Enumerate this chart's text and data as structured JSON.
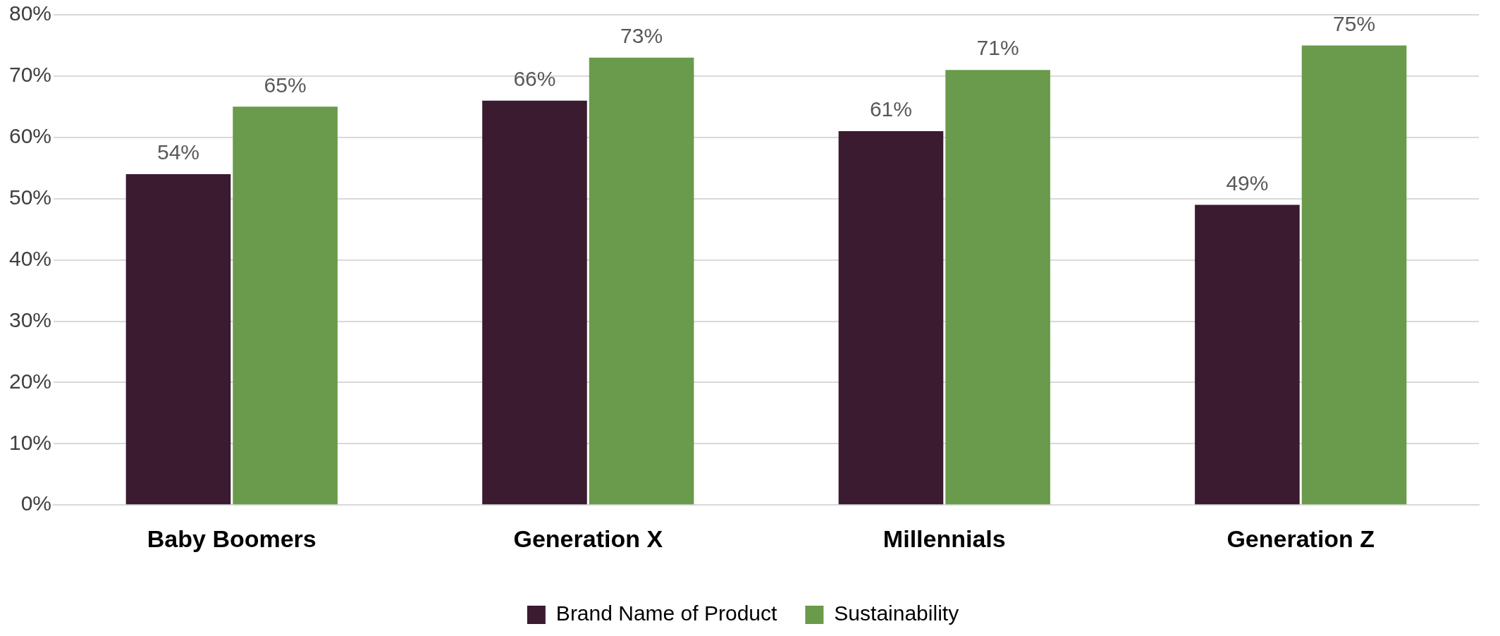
{
  "chart_data": {
    "type": "bar",
    "categories": [
      "Baby Boomers",
      "Generation X",
      "Millennials",
      "Generation Z"
    ],
    "series": [
      {
        "name": "Brand Name of Product",
        "color": "#3a1b30",
        "values": [
          54,
          66,
          61,
          49
        ],
        "value_labels": [
          "54%",
          "66%",
          "61%",
          "49%"
        ]
      },
      {
        "name": "Sustainability",
        "color": "#6a9a4b",
        "values": [
          65,
          73,
          71,
          75
        ],
        "value_labels": [
          "65%",
          "73%",
          "71%",
          "75%"
        ]
      }
    ],
    "ylim": [
      0,
      80
    ],
    "yticks": [
      {
        "value": 0,
        "label": "0%"
      },
      {
        "value": 10,
        "label": "10%"
      },
      {
        "value": 20,
        "label": "20%"
      },
      {
        "value": 30,
        "label": "30%"
      },
      {
        "value": 40,
        "label": "40%"
      },
      {
        "value": 50,
        "label": "50%"
      },
      {
        "value": 60,
        "label": "60%"
      },
      {
        "value": 70,
        "label": "70%"
      },
      {
        "value": 80,
        "label": "80%"
      }
    ],
    "grid": "y",
    "legend": "bottom"
  }
}
